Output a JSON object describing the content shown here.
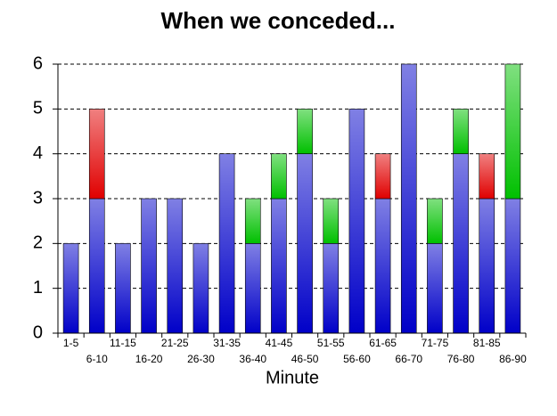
{
  "chart_data": {
    "type": "stacked_bar",
    "title": "When we conceded...",
    "x_label": "Minute",
    "categories": [
      "1-5",
      "6-10",
      "11-15",
      "16-20",
      "21-25",
      "26-30",
      "31-35",
      "36-40",
      "41-45",
      "46-50",
      "51-55",
      "56-60",
      "61-65",
      "66-70",
      "71-75",
      "76-80",
      "81-85",
      "86-90"
    ],
    "series": [
      {
        "color": "#0000c8",
        "values": [
          2,
          3,
          2,
          3,
          3,
          2,
          4,
          2,
          3,
          4,
          2,
          5,
          3,
          6,
          2,
          4,
          3,
          3
        ]
      },
      {
        "color": "#e00000",
        "values": [
          null,
          2,
          null,
          null,
          null,
          null,
          null,
          null,
          null,
          null,
          null,
          null,
          1,
          null,
          null,
          null,
          1,
          null
        ]
      },
      {
        "color": "#00c000",
        "values": [
          null,
          null,
          null,
          null,
          null,
          null,
          null,
          1,
          1,
          1,
          1,
          null,
          null,
          null,
          1,
          1,
          null,
          3
        ]
      }
    ],
    "ylim": [
      0,
      6
    ],
    "yticks": [
      0,
      1,
      2,
      3,
      4,
      5,
      6
    ],
    "grid": true
  }
}
